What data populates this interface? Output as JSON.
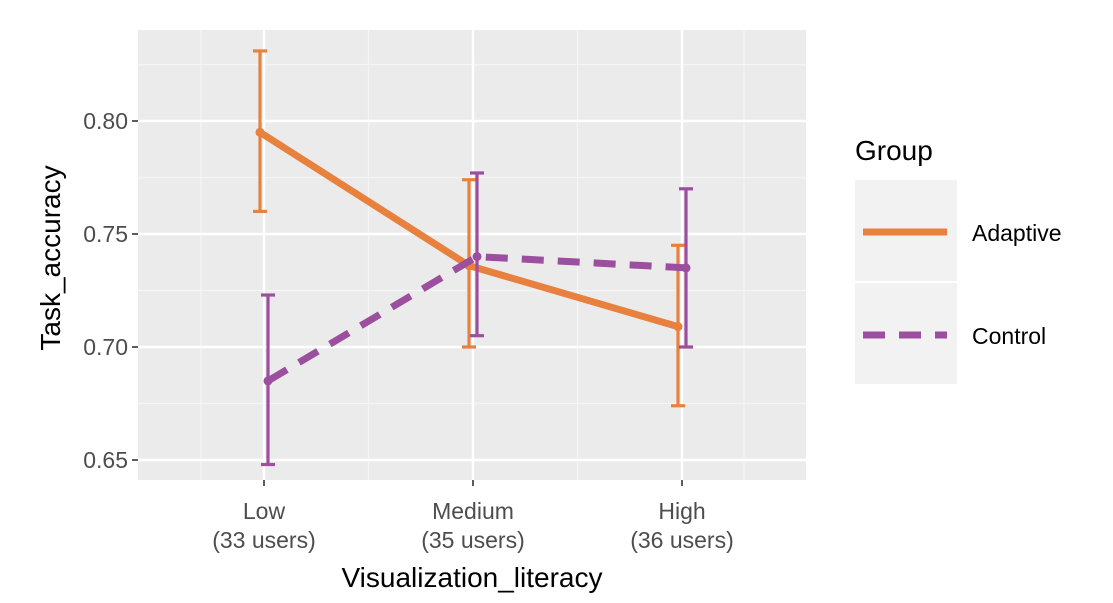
{
  "chart_data": {
    "type": "line",
    "title": "",
    "xlabel": "Visualization_literacy",
    "ylabel": "Task_accuracy",
    "categories": [
      {
        "line1": "Low",
        "line2": "(33 users)"
      },
      {
        "line1": "Medium",
        "line2": "(35 users)"
      },
      {
        "line1": "High",
        "line2": "(36 users)"
      }
    ],
    "y_ticks": [
      "0.65",
      "0.70",
      "0.75",
      "0.80"
    ],
    "ylim": [
      0.64,
      0.84
    ],
    "grid": true,
    "legend": {
      "title": "Group",
      "placement": "right"
    },
    "series": [
      {
        "name": "Adaptive",
        "color": "#e8803e",
        "line_style": "solid",
        "values": [
          0.795,
          0.736,
          0.709
        ],
        "error_low": [
          0.76,
          0.7,
          0.674
        ],
        "error_high": [
          0.831,
          0.774,
          0.745
        ]
      },
      {
        "name": "Control",
        "color": "#9b4f9e",
        "line_style": "dashed",
        "values": [
          0.685,
          0.74,
          0.735
        ],
        "error_low": [
          0.648,
          0.705,
          0.7
        ],
        "error_high": [
          0.723,
          0.777,
          0.77
        ]
      }
    ]
  }
}
